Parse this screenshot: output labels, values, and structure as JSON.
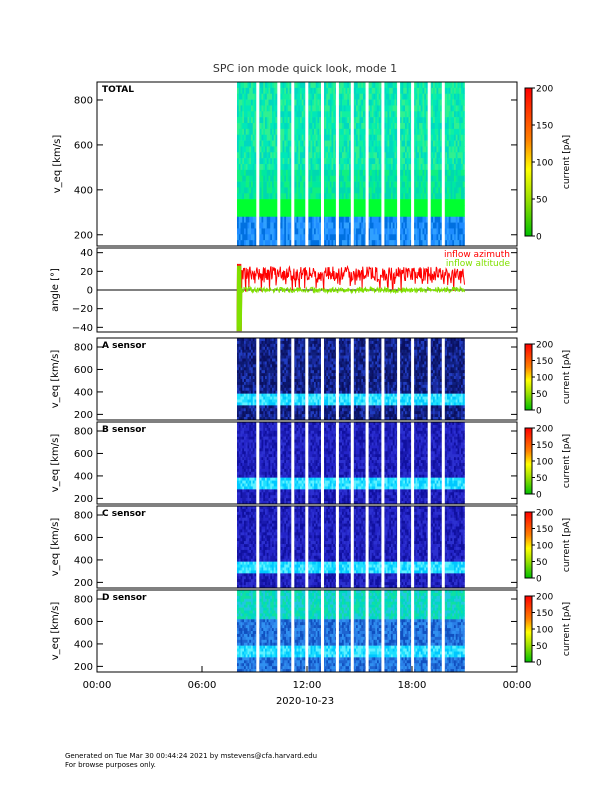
{
  "title": "SPC ion mode quick look, mode 1",
  "date_label": "2020-10-23",
  "x_ticks": [
    "00:00",
    "06:00",
    "12:00",
    "18:00",
    "00:00"
  ],
  "footer": {
    "line1": "Generated on Tue Mar 30 00:44:24 2021 by mstevens@cfa.harvard.edu",
    "line2": "For browse purposes only."
  },
  "colorbar_label": "current [pA]",
  "colors": {
    "background_low": "#1a1aa0",
    "mid": "#00d0ff",
    "high": "#00ff40",
    "azimuth": "#ff0000",
    "altitude": "#80e000"
  },
  "chart_data": [
    {
      "type": "heatmap",
      "panel": "TOTAL",
      "label": "TOTAL",
      "ylabel": "v_eq [km/s]",
      "yticks": [
        "200",
        "400",
        "600",
        "800"
      ],
      "ylim": [
        150,
        880
      ],
      "xlim_hours": [
        0,
        24
      ],
      "data_start_hours": 8.0,
      "data_end_hours": 21.0,
      "band_velocity": 330,
      "colorbar": {
        "label": "current [pA]",
        "ticks": [
          "0",
          "50",
          "100",
          "150",
          "200"
        ]
      }
    },
    {
      "type": "line",
      "panel": "angle",
      "ylabel": "angle [°]",
      "yticks": [
        "−40",
        "−20",
        "0",
        "20",
        "40"
      ],
      "ylim": [
        -45,
        45
      ],
      "legend": [
        "inflow azimuth",
        "inflow altitude"
      ],
      "series": [
        {
          "name": "inflow azimuth",
          "color": "#ff0000",
          "range": [
            2,
            28
          ]
        },
        {
          "name": "inflow altitude",
          "color": "#80e000",
          "range": [
            -5,
            5
          ]
        }
      ]
    },
    {
      "type": "heatmap",
      "panel": "A",
      "label": "A sensor",
      "ylabel": "v_eq [km/s]",
      "yticks": [
        "200",
        "400",
        "600",
        "800"
      ],
      "ylim": [
        150,
        880
      ],
      "band_velocity": 330,
      "colorbar": {
        "label": "current [pA]",
        "ticks": [
          "0",
          "50",
          "100",
          "150",
          "200"
        ]
      }
    },
    {
      "type": "heatmap",
      "panel": "B",
      "label": "B sensor",
      "ylabel": "v_eq [km/s]",
      "yticks": [
        "200",
        "400",
        "600",
        "800"
      ],
      "ylim": [
        150,
        880
      ],
      "band_velocity": 330,
      "colorbar": {
        "label": "current [pA]",
        "ticks": [
          "0",
          "50",
          "100",
          "150",
          "200"
        ]
      }
    },
    {
      "type": "heatmap",
      "panel": "C",
      "label": "C sensor",
      "ylabel": "v_eq [km/s]",
      "yticks": [
        "200",
        "400",
        "600",
        "800"
      ],
      "ylim": [
        150,
        880
      ],
      "band_velocity": 330,
      "colorbar": {
        "label": "current [pA]",
        "ticks": [
          "0",
          "50",
          "100",
          "150",
          "200"
        ]
      }
    },
    {
      "type": "heatmap",
      "panel": "D",
      "label": "D sensor",
      "ylabel": "v_eq [km/s]",
      "yticks": [
        "200",
        "400",
        "600",
        "800"
      ],
      "ylim": [
        150,
        880
      ],
      "band_velocity": 330,
      "colorbar": {
        "label": "current [pA]",
        "ticks": [
          "0",
          "50",
          "100",
          "150",
          "200"
        ]
      }
    }
  ]
}
